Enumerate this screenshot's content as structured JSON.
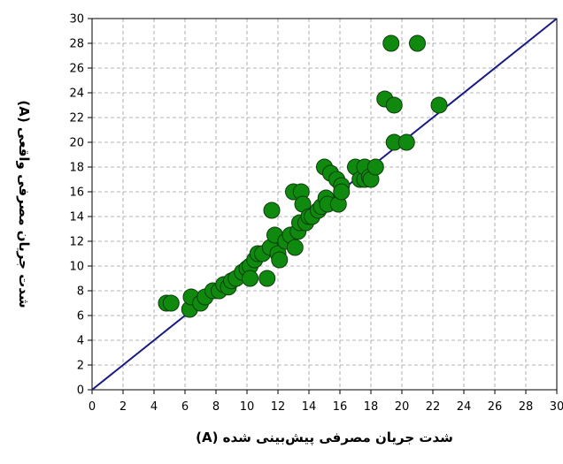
{
  "chart_data": {
    "type": "scatter",
    "title": "",
    "xlabel": "شدت جریان مصرفی پیش‌بینی شده (A)",
    "ylabel": "شدت جریان مصرفی واقعی (A)",
    "xlim": [
      0,
      30
    ],
    "ylim": [
      0,
      30
    ],
    "xticks": [
      "0",
      "2",
      "4",
      "6",
      "8",
      "10",
      "12",
      "14",
      "16",
      "18",
      "20",
      "22",
      "24",
      "26",
      "28",
      "30"
    ],
    "yticks": [
      "0",
      "2",
      "4",
      "6",
      "8",
      "10",
      "12",
      "14",
      "16",
      "18",
      "20",
      "22",
      "24",
      "26",
      "28",
      "30"
    ],
    "grid": true,
    "grid_style": "dashed",
    "reference_line": {
      "from": [
        0,
        0
      ],
      "to": [
        30,
        30
      ],
      "color": "#1a1a80"
    },
    "marker_color": "#0f8a0f",
    "marker_edge_color": "#0a3d0a",
    "series": [
      {
        "points": [
          [
            4.8,
            7.0
          ],
          [
            5.1,
            7.0
          ],
          [
            6.3,
            6.5
          ],
          [
            6.4,
            7.5
          ],
          [
            7.0,
            7.0
          ],
          [
            7.3,
            7.5
          ],
          [
            7.8,
            8.0
          ],
          [
            8.2,
            8.0
          ],
          [
            8.5,
            8.5
          ],
          [
            8.8,
            8.3
          ],
          [
            9.0,
            8.8
          ],
          [
            9.3,
            9.0
          ],
          [
            9.7,
            9.5
          ],
          [
            10.0,
            9.8
          ],
          [
            10.2,
            10.0
          ],
          [
            10.2,
            9.0
          ],
          [
            10.5,
            10.5
          ],
          [
            10.7,
            11.0
          ],
          [
            11.0,
            11.0
          ],
          [
            11.3,
            9.0
          ],
          [
            11.5,
            11.5
          ],
          [
            11.6,
            14.5
          ],
          [
            11.8,
            12.5
          ],
          [
            12.0,
            11.0
          ],
          [
            12.1,
            10.5
          ],
          [
            12.5,
            12.0
          ],
          [
            12.8,
            12.5
          ],
          [
            13.0,
            16.0
          ],
          [
            13.1,
            11.5
          ],
          [
            13.3,
            12.8
          ],
          [
            13.4,
            13.5
          ],
          [
            13.5,
            16.0
          ],
          [
            13.6,
            15.0
          ],
          [
            13.8,
            13.5
          ],
          [
            14.0,
            14.0
          ],
          [
            14.2,
            14.0
          ],
          [
            14.6,
            14.5
          ],
          [
            14.8,
            14.8
          ],
          [
            15.0,
            18.0
          ],
          [
            15.1,
            15.5
          ],
          [
            15.2,
            15.0
          ],
          [
            15.4,
            17.5
          ],
          [
            15.8,
            17.0
          ],
          [
            15.9,
            15.0
          ],
          [
            16.1,
            16.5
          ],
          [
            16.1,
            16.0
          ],
          [
            17.0,
            18.0
          ],
          [
            17.3,
            17.0
          ],
          [
            17.6,
            17.0
          ],
          [
            17.6,
            18.0
          ],
          [
            17.9,
            17.2
          ],
          [
            18.0,
            17.0
          ],
          [
            18.3,
            18.0
          ],
          [
            18.9,
            23.5
          ],
          [
            19.3,
            28.0
          ],
          [
            19.5,
            20.0
          ],
          [
            19.5,
            23.0
          ],
          [
            20.3,
            20.0
          ],
          [
            21.0,
            28.0
          ],
          [
            22.4,
            23.0
          ]
        ]
      }
    ]
  }
}
